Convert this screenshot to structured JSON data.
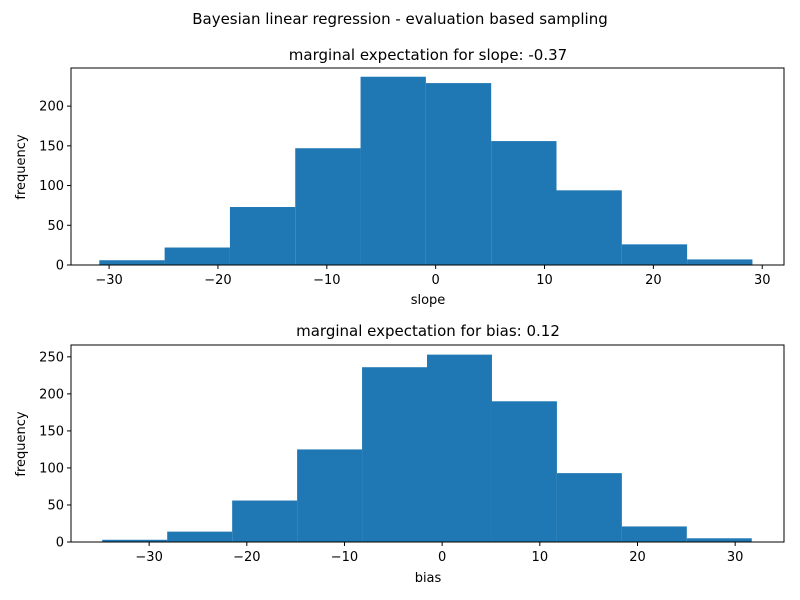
{
  "suptitle": "Bayesian linear regression - evaluation based sampling",
  "colors": {
    "bar": "#1f77b4",
    "axis": "#000000",
    "background": "#ffffff"
  },
  "chart_data": [
    {
      "type": "bar",
      "title": "marginal expectation for slope: -0.37",
      "xlabel": "slope",
      "ylabel": "frequency",
      "xlim": [
        -33.5,
        32
      ],
      "ylim": [
        0,
        248
      ],
      "xticks": [
        -30,
        -20,
        -10,
        0,
        10,
        20,
        30
      ],
      "xtick_labels": [
        "−30",
        "−20",
        "−10",
        "0",
        "10",
        "20",
        "30"
      ],
      "yticks": [
        0,
        50,
        100,
        150,
        200
      ],
      "ytick_labels": [
        "0",
        "50",
        "100",
        "150",
        "200"
      ],
      "bin_edges": [
        -30.9,
        -24.9,
        -18.9,
        -12.9,
        -6.9,
        -0.9,
        5.1,
        11.1,
        17.1,
        23.1,
        29.1
      ],
      "values": [
        6,
        22,
        73,
        147,
        237,
        229,
        156,
        94,
        26,
        7
      ],
      "grid": false
    },
    {
      "type": "bar",
      "title": "marginal expectation for bias: 0.12",
      "xlabel": "bias",
      "ylabel": "frequency",
      "xlim": [
        -38,
        35
      ],
      "ylim": [
        0,
        266
      ],
      "xticks": [
        -30,
        -20,
        -10,
        0,
        10,
        20,
        30
      ],
      "xtick_labels": [
        "−30",
        "−20",
        "−10",
        "0",
        "10",
        "20",
        "30"
      ],
      "yticks": [
        0,
        50,
        100,
        150,
        200,
        250
      ],
      "ytick_labels": [
        "0",
        "50",
        "100",
        "150",
        "200",
        "250"
      ],
      "bin_edges": [
        -34.8,
        -28.15,
        -21.5,
        -14.85,
        -8.2,
        -1.55,
        5.1,
        11.75,
        18.4,
        25.05,
        31.7
      ],
      "values": [
        3,
        14,
        56,
        125,
        236,
        253,
        190,
        93,
        21,
        5
      ],
      "grid": false
    }
  ]
}
